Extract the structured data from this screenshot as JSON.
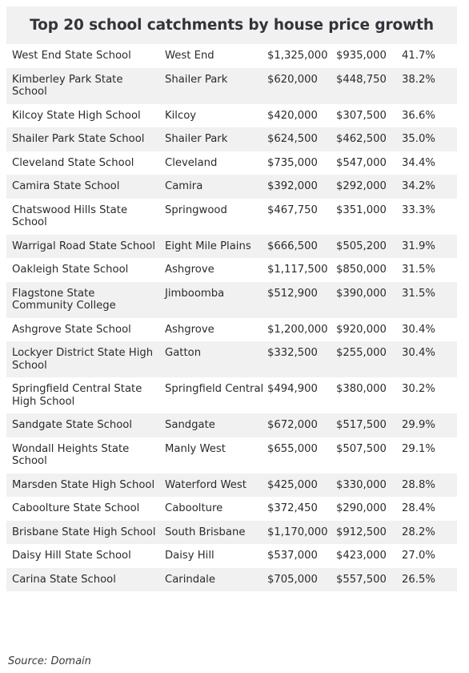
{
  "title": "Top 20 school catchments by house price growth",
  "rows": [
    {
      "school": "West End State School",
      "suburb": "West End",
      "price": "$1,325,000",
      "prev": "$935,000",
      "growth": "41.7%"
    },
    {
      "school": "Kimberley Park State School",
      "suburb": "Shailer Park",
      "price": "$620,000",
      "prev": "$448,750",
      "growth": "38.2%"
    },
    {
      "school": "Kilcoy State High School",
      "suburb": "Kilcoy",
      "price": "$420,000",
      "prev": "$307,500",
      "growth": "36.6%"
    },
    {
      "school": "Shailer Park State School",
      "suburb": "Shailer Park",
      "price": "$624,500",
      "prev": "$462,500",
      "growth": "35.0%"
    },
    {
      "school": "Cleveland State School",
      "suburb": "Cleveland",
      "price": "$735,000",
      "prev": "$547,000",
      "growth": "34.4%"
    },
    {
      "school": "Camira State School",
      "suburb": "Camira",
      "price": "$392,000",
      "prev": "$292,000",
      "growth": "34.2%"
    },
    {
      "school": "Chatswood Hills State School",
      "suburb": "Springwood",
      "price": "$467,750",
      "prev": "$351,000",
      "growth": "33.3%"
    },
    {
      "school": "Warrigal Road State School",
      "suburb": "Eight Mile Plains",
      "price": "$666,500",
      "prev": "$505,200",
      "growth": "31.9%"
    },
    {
      "school": "Oakleigh State School",
      "suburb": "Ashgrove",
      "price": "$1,117,500",
      "prev": "$850,000",
      "growth": "31.5%"
    },
    {
      "school": "Flagstone State Community College",
      "suburb": "Jimboomba",
      "price": "$512,900",
      "prev": "$390,000",
      "growth": "31.5%"
    },
    {
      "school": "Ashgrove State School",
      "suburb": "Ashgrove",
      "price": "$1,200,000",
      "prev": "$920,000",
      "growth": "30.4%"
    },
    {
      "school": "Lockyer District State High School",
      "suburb": "Gatton",
      "price": "$332,500",
      "prev": "$255,000",
      "growth": "30.4%"
    },
    {
      "school": "Springfield Central State High School",
      "suburb": "Springfield Central",
      "price": "$494,900",
      "prev": "$380,000",
      "growth": "30.2%"
    },
    {
      "school": "Sandgate State School",
      "suburb": "Sandgate",
      "price": "$672,000",
      "prev": "$517,500",
      "growth": "29.9%"
    },
    {
      "school": "Wondall Heights State School",
      "suburb": "Manly West",
      "price": "$655,000",
      "prev": "$507,500",
      "growth": "29.1%"
    },
    {
      "school": "Marsden State High School",
      "suburb": "Waterford West",
      "price": "$425,000",
      "prev": "$330,000",
      "growth": "28.8%"
    },
    {
      "school": "Caboolture State School",
      "suburb": "Caboolture",
      "price": "$372,450",
      "prev": "$290,000",
      "growth": "28.4%"
    },
    {
      "school": "Brisbane State High School",
      "suburb": "South Brisbane",
      "price": "$1,170,000",
      "prev": "$912,500",
      "growth": "28.2%"
    },
    {
      "school": "Daisy Hill State School",
      "suburb": "Daisy Hill",
      "price": "$537,000",
      "prev": "$423,000",
      "growth": "27.0%"
    },
    {
      "school": "Carina State School",
      "suburb": "Carindale",
      "price": "$705,000",
      "prev": "$557,500",
      "growth": "26.5%"
    }
  ],
  "source": "Source: Domain"
}
